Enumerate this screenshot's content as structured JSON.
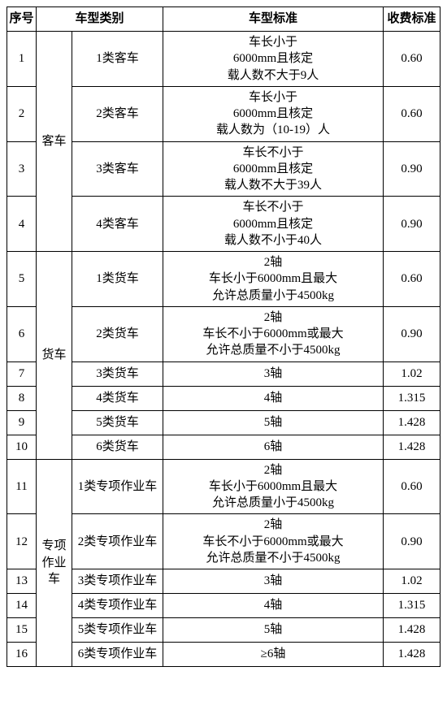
{
  "header": {
    "col_index": "序号",
    "col_category": "车型类别",
    "col_standard": "车型标准",
    "col_fee": "收费标准"
  },
  "groups": {
    "bus": "客车",
    "truck": "货车",
    "special": "专项作业车"
  },
  "rows": [
    {
      "idx": "1",
      "sub": "1类客车",
      "std": "车长小于\n6000mm且核定\n载人数不大于9人",
      "fee": "0.60"
    },
    {
      "idx": "2",
      "sub": "2类客车",
      "std": "车长小于\n6000mm且核定\n载人数为（10-19）人",
      "fee": "0.60"
    },
    {
      "idx": "3",
      "sub": "3类客车",
      "std": "车长不小于\n6000mm且核定\n载人数不大于39人",
      "fee": "0.90"
    },
    {
      "idx": "4",
      "sub": "4类客车",
      "std": "车长不小于\n6000mm且核定\n载人数不小于40人",
      "fee": "0.90"
    },
    {
      "idx": "5",
      "sub": "1类货车",
      "std": "2轴\n车长小于6000mm且最大\n允许总质量小于4500kg",
      "fee": "0.60"
    },
    {
      "idx": "6",
      "sub": "2类货车",
      "std": "2轴\n车长不小于6000mm或最大\n允许总质量不小于4500kg",
      "fee": "0.90"
    },
    {
      "idx": "7",
      "sub": "3类货车",
      "std": "3轴",
      "fee": "1.02"
    },
    {
      "idx": "8",
      "sub": "4类货车",
      "std": "4轴",
      "fee": "1.315"
    },
    {
      "idx": "9",
      "sub": "5类货车",
      "std": "5轴",
      "fee": "1.428"
    },
    {
      "idx": "10",
      "sub": "6类货车",
      "std": "6轴",
      "fee": "1.428"
    },
    {
      "idx": "11",
      "sub": "1类专项作业车",
      "std": "2轴\n车长小于6000mm且最大\n允许总质量小于4500kg",
      "fee": "0.60"
    },
    {
      "idx": "12",
      "sub": "2类专项作业车",
      "std": "2轴\n车长不小于6000mm或最大\n允许总质量不小于4500kg",
      "fee": "0.90"
    },
    {
      "idx": "13",
      "sub": "3类专项作业车",
      "std": "3轴",
      "fee": "1.02"
    },
    {
      "idx": "14",
      "sub": "4类专项作业车",
      "std": "4轴",
      "fee": "1.315"
    },
    {
      "idx": "15",
      "sub": "5类专项作业车",
      "std": "5轴",
      "fee": "1.428"
    },
    {
      "idx": "16",
      "sub": "6类专项作业车",
      "std": "≥6轴",
      "fee": "1.428"
    }
  ]
}
